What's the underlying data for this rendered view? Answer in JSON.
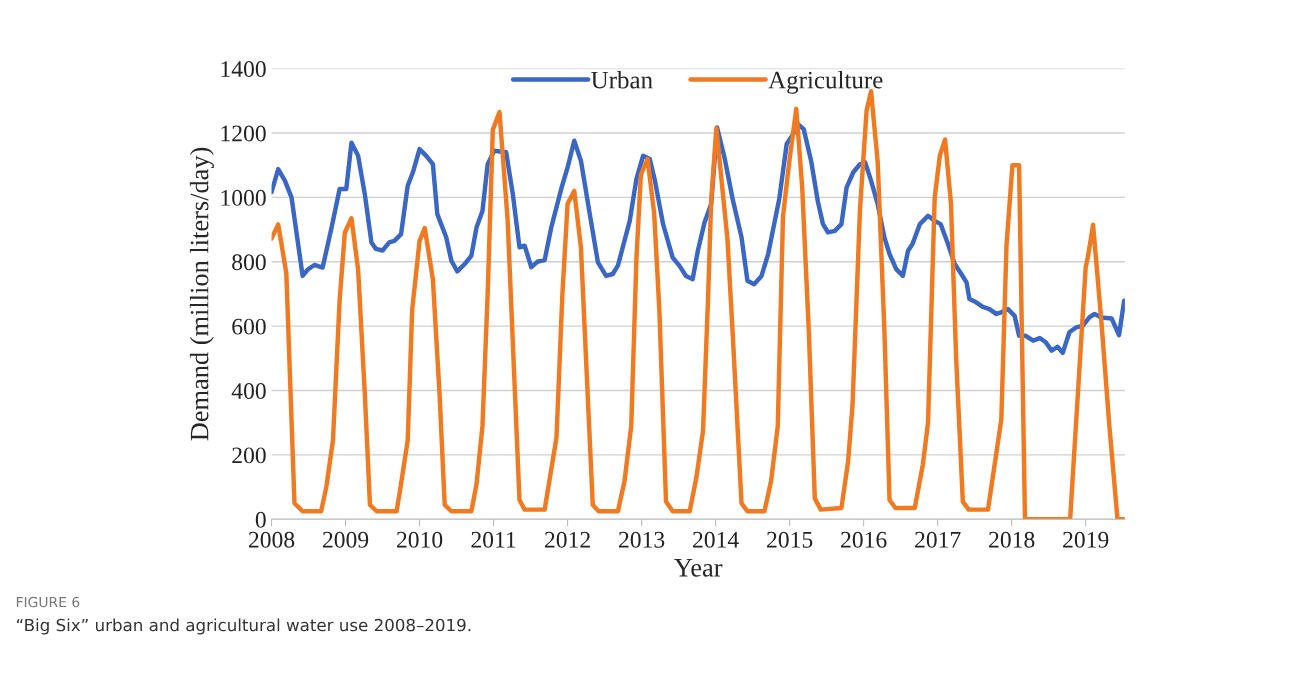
{
  "chart_data": {
    "type": "line",
    "xlabel": "Year",
    "ylabel": "Demand (million liters/day)",
    "xlim": [
      2008,
      2019.53
    ],
    "xticks": [
      2008,
      2009,
      2010,
      2011,
      2012,
      2013,
      2014,
      2015,
      2016,
      2017,
      2018,
      2019
    ],
    "ylim": [
      0,
      1400
    ],
    "yticks": [
      0,
      200,
      400,
      600,
      800,
      1000,
      1200,
      1400
    ],
    "grid": "y",
    "legend": "top",
    "marker": "none",
    "line_style": "solid",
    "annotations": [
      "FIGURE 6",
      "“Big Six” urban and agricultural water use 2008–2019."
    ],
    "series": [
      {
        "name": "Urban",
        "color": "#3a66c4",
        "x": [
          2008.0,
          2008.09,
          2008.18,
          2008.27,
          2008.42,
          2008.49,
          2008.58,
          2008.69,
          2008.81,
          2008.92,
          2009.01,
          2009.08,
          2009.17,
          2009.26,
          2009.35,
          2009.41,
          2009.5,
          2009.59,
          2009.66,
          2009.75,
          2009.84,
          2009.91,
          2010.0,
          2010.09,
          2010.18,
          2010.24,
          2010.36,
          2010.43,
          2010.51,
          2010.61,
          2010.7,
          2010.77,
          2010.85,
          2010.92,
          2011.01,
          2011.17,
          2011.26,
          2011.35,
          2011.42,
          2011.51,
          2011.59,
          2011.69,
          2011.78,
          2011.92,
          2012.0,
          2012.09,
          2012.18,
          2012.3,
          2012.41,
          2012.52,
          2012.61,
          2012.68,
          2012.84,
          2012.93,
          2013.02,
          2013.11,
          2013.18,
          2013.29,
          2013.42,
          2013.51,
          2013.6,
          2013.69,
          2013.76,
          2013.85,
          2013.94,
          2014.02,
          2014.12,
          2014.23,
          2014.35,
          2014.43,
          2014.52,
          2014.62,
          2014.71,
          2014.8,
          2014.86,
          2014.96,
          2015.05,
          2015.11,
          2015.19,
          2015.29,
          2015.38,
          2015.45,
          2015.52,
          2015.61,
          2015.7,
          2015.77,
          2015.86,
          2015.95,
          2016.02,
          2016.1,
          2016.19,
          2016.28,
          2016.35,
          2016.44,
          2016.53,
          2016.6,
          2016.66,
          2016.76,
          2016.87,
          2016.96,
          2017.04,
          2017.14,
          2017.23,
          2017.32,
          2017.39,
          2017.43,
          2017.52,
          2017.61,
          2017.7,
          2017.79,
          2017.86,
          2017.95,
          2018.04,
          2018.1,
          2018.19,
          2018.29,
          2018.38,
          2018.46,
          2018.54,
          2018.62,
          2018.69,
          2018.78,
          2018.87,
          2018.96,
          2019.05,
          2019.12,
          2019.21,
          2019.35,
          2019.45,
          2019.52
        ],
        "values": [
          1016,
          1088,
          1052,
          1000,
          756,
          776,
          790,
          782,
          905,
          1026,
          1026,
          1170,
          1129,
          1010,
          860,
          840,
          835,
          860,
          865,
          886,
          1036,
          1078,
          1150,
          1129,
          1103,
          948,
          876,
          803,
          770,
          793,
          819,
          907,
          958,
          1103,
          1145,
          1140,
          1010,
          845,
          850,
          783,
          800,
          805,
          907,
          1031,
          1093,
          1176,
          1114,
          948,
          798,
          756,
          762,
          788,
          927,
          1057,
          1129,
          1119,
          1052,
          917,
          813,
          788,
          756,
          746,
          834,
          922,
          979,
          1217,
          1124,
          995,
          876,
          741,
          730,
          756,
          824,
          927,
          995,
          1166,
          1197,
          1228,
          1212,
          1114,
          989,
          917,
          891,
          896,
          917,
          1031,
          1078,
          1103,
          1109,
          1052,
          979,
          876,
          824,
          777,
          756,
          834,
          855,
          917,
          943,
          927,
          917,
          855,
          793,
          762,
          736,
          684,
          674,
          660,
          653,
          638,
          643,
          653,
          632,
          570,
          570,
          555,
          563,
          550,
          524,
          536,
          517,
          581,
          596,
          601,
          627,
          638,
          627,
          624,
          572,
          679
        ]
      },
      {
        "name": "Agriculture",
        "color": "#f07a22",
        "x": [
          2008.0,
          2008.09,
          2008.2,
          2008.31,
          2008.42,
          2008.67,
          2008.74,
          2008.83,
          2008.92,
          2008.99,
          2009.08,
          2009.17,
          2009.26,
          2009.33,
          2009.42,
          2009.69,
          2009.75,
          2009.84,
          2009.9,
          2010.0,
          2010.07,
          2010.18,
          2010.27,
          2010.34,
          2010.43,
          2010.7,
          2010.77,
          2010.85,
          2010.92,
          2010.99,
          2011.08,
          2011.19,
          2011.35,
          2011.42,
          2011.69,
          2011.85,
          2011.93,
          2012.0,
          2012.09,
          2012.18,
          2012.25,
          2012.34,
          2012.42,
          2012.68,
          2012.77,
          2012.86,
          2012.93,
          2012.99,
          2013.08,
          2013.17,
          2013.24,
          2013.33,
          2013.42,
          2013.65,
          2013.74,
          2013.83,
          2013.9,
          2013.94,
          2014.01,
          2014.16,
          2014.23,
          2014.35,
          2014.43,
          2014.66,
          2014.75,
          2014.84,
          2014.91,
          2015.0,
          2015.09,
          2015.17,
          2015.26,
          2015.34,
          2015.42,
          2015.7,
          2015.79,
          2015.85,
          2015.95,
          2016.04,
          2016.1,
          2016.19,
          2016.28,
          2016.35,
          2016.43,
          2016.69,
          2016.8,
          2016.87,
          2016.96,
          2017.03,
          2017.1,
          2017.18,
          2017.25,
          2017.34,
          2017.42,
          2017.68,
          2017.77,
          2017.86,
          2017.93,
          2018.01,
          2018.1,
          2018.18,
          2018.79,
          2019.0,
          2019.03,
          2019.1,
          2019.21,
          2019.32,
          2019.43,
          2019.52
        ],
        "values": [
          872,
          916,
          764,
          50,
          25,
          25,
          100,
          245,
          680,
          890,
          935,
          775,
          391,
          45,
          25,
          25,
          110,
          245,
          650,
          865,
          905,
          745,
          390,
          45,
          25,
          25,
          110,
          290,
          700,
          1210,
          1265,
          930,
          60,
          30,
          30,
          254,
          700,
          980,
          1020,
          845,
          495,
          45,
          25,
          25,
          120,
          290,
          810,
          1070,
          1120,
          950,
          650,
          55,
          25,
          25,
          130,
          275,
          700,
          990,
          1215,
          870,
          580,
          50,
          25,
          25,
          120,
          290,
          940,
          1120,
          1275,
          1030,
          580,
          65,
          30,
          35,
          180,
          355,
          960,
          1270,
          1330,
          1110,
          590,
          60,
          35,
          35,
          170,
          300,
          1000,
          1130,
          1180,
          980,
          500,
          55,
          30,
          30,
          170,
          310,
          850,
          1100,
          1100,
          0,
          0,
          783,
          815,
          915,
          620,
          290,
          0,
          0
        ]
      }
    ]
  }
}
